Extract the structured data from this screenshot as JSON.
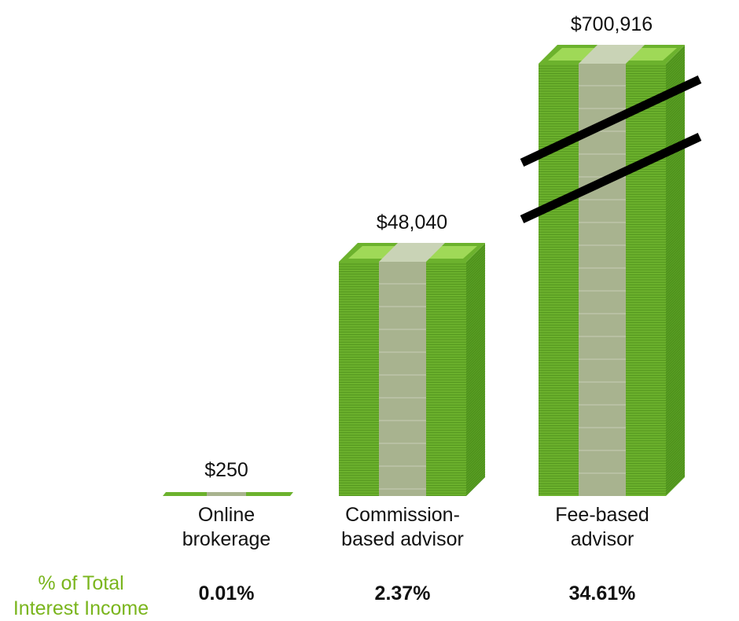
{
  "chart_data": {
    "type": "bar",
    "categories": [
      {
        "lines": [
          "Online",
          "brokerage"
        ]
      },
      {
        "lines": [
          "Commission-",
          "based advisor"
        ]
      },
      {
        "lines": [
          "Fee-based",
          "advisor"
        ]
      }
    ],
    "values": [
      250,
      48040,
      700916
    ],
    "value_labels": [
      "$250",
      "$48,040",
      "$700,916"
    ],
    "axis_break_on_category": 2,
    "percent_row": {
      "caption_lines": [
        "% of Total",
        "Interest Income"
      ],
      "values": [
        "0.01%",
        "2.37%",
        "34.61%"
      ]
    },
    "colors": {
      "bill_green": "#6cb22d",
      "bill_dark": "#3f7d13",
      "bill_light": "#9fd957",
      "band": "#a8b38f",
      "band_top": "#c9d3b6",
      "break_line": "#000000",
      "caption": "#7ab51d"
    }
  }
}
